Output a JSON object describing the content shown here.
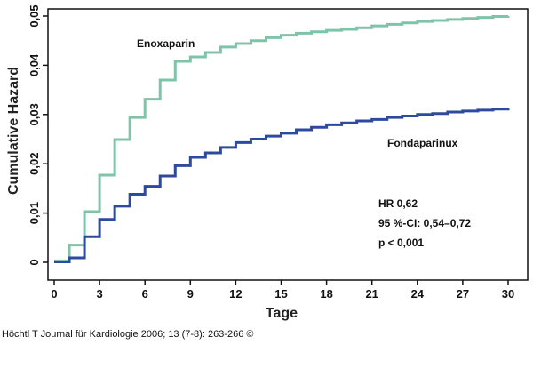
{
  "chart_data": {
    "type": "line",
    "step": true,
    "xlabel": "Tage",
    "ylabel": "Cumulative Hazard",
    "xlim": [
      0,
      30
    ],
    "ylim": [
      0,
      0.05
    ],
    "xticks": [
      0,
      3,
      6,
      9,
      12,
      15,
      18,
      21,
      24,
      27,
      30
    ],
    "yticks": [
      0,
      0.01,
      0.02,
      0.03,
      0.04,
      0.05
    ],
    "ytick_labels": [
      "0",
      "0,01",
      "0,02",
      "0,03",
      "0,04",
      "0,05"
    ],
    "grid": false,
    "series": [
      {
        "name": "Enoxaparin",
        "color": "#7fc4a8",
        "x": [
          0,
          1,
          2,
          3,
          4,
          5,
          6,
          7,
          8,
          9,
          10,
          11,
          12,
          13,
          14,
          15,
          16,
          17,
          18,
          19,
          20,
          21,
          22,
          23,
          24,
          25,
          26,
          27,
          28,
          29,
          30
        ],
        "y": [
          0.0003,
          0.0035,
          0.0103,
          0.0177,
          0.0249,
          0.0294,
          0.0331,
          0.037,
          0.0408,
          0.0417,
          0.0426,
          0.0437,
          0.0444,
          0.045,
          0.0456,
          0.0461,
          0.0465,
          0.0468,
          0.0471,
          0.0473,
          0.0476,
          0.048,
          0.0483,
          0.0486,
          0.0489,
          0.0491,
          0.0493,
          0.0495,
          0.0497,
          0.0499,
          0.05
        ]
      },
      {
        "name": "Fondaparinux",
        "color": "#2e4a9e",
        "x": [
          0,
          1,
          2,
          3,
          4,
          5,
          6,
          7,
          8,
          9,
          10,
          11,
          12,
          13,
          14,
          15,
          16,
          17,
          18,
          19,
          20,
          21,
          22,
          23,
          24,
          25,
          26,
          27,
          28,
          29,
          30
        ],
        "y": [
          0.0001,
          0.0009,
          0.0052,
          0.0087,
          0.0114,
          0.0138,
          0.0154,
          0.0175,
          0.0196,
          0.0213,
          0.0222,
          0.0233,
          0.0243,
          0.025,
          0.0256,
          0.0262,
          0.0269,
          0.0274,
          0.0279,
          0.0283,
          0.0287,
          0.029,
          0.0294,
          0.0297,
          0.03,
          0.0302,
          0.0305,
          0.0307,
          0.0309,
          0.0311,
          0.0313
        ]
      }
    ],
    "annotations": [
      "HR 0,62",
      "95 %-CI: 0,54–0,72",
      "p < 0,001"
    ]
  },
  "citation": "Höchtl T Journal für Kardiologie 2006; 13 (7-8): 263-266 ©"
}
